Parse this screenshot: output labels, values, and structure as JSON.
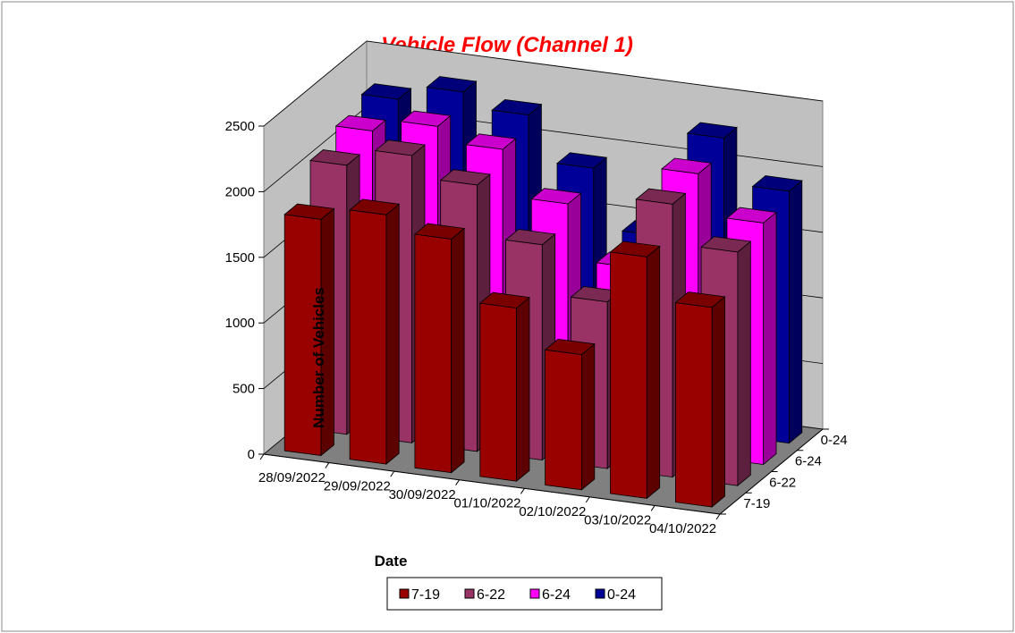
{
  "chart_data": {
    "type": "bar",
    "subtype": "3d-clustered-depth",
    "title": "Vehicle Flow (Channel 1)",
    "xlabel": "Date",
    "ylabel": "Number of Vehicles",
    "ylim": [
      0,
      2500
    ],
    "yticks": [
      "0",
      "500",
      "1000",
      "1500",
      "2000",
      "2500"
    ],
    "grid": true,
    "legend_position": "bottom",
    "categories": [
      "28/09/2022",
      "29/09/2022",
      "30/09/2022",
      "01/10/2022",
      "02/10/2022",
      "03/10/2022",
      "04/10/2022"
    ],
    "depth_labels": [
      "0-24",
      "6-24",
      "6-22",
      "7-19"
    ],
    "series": [
      {
        "name": "7-19",
        "color": "#990000",
        "values": [
          1800,
          1900,
          1780,
          1320,
          1030,
          1840,
          1520
        ]
      },
      {
        "name": "6-22",
        "color": "#993366",
        "values": [
          2050,
          2190,
          2030,
          1640,
          1270,
          2080,
          1780
        ]
      },
      {
        "name": "6-24",
        "color": "#ff00ff",
        "values": [
          2150,
          2250,
          2140,
          1790,
          1370,
          2150,
          1840
        ]
      },
      {
        "name": "0-24",
        "color": "#000099",
        "values": [
          2230,
          2350,
          2240,
          1900,
          1450,
          2260,
          1920
        ]
      }
    ]
  }
}
